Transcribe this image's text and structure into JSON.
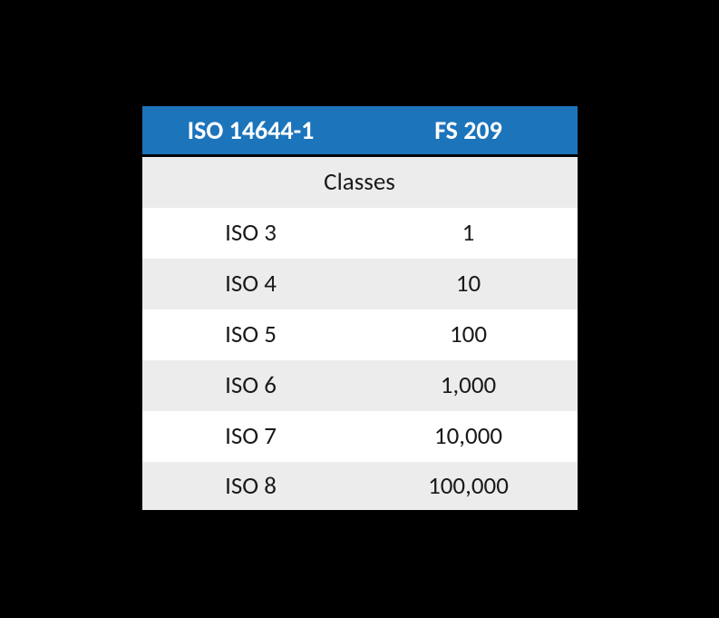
{
  "table": {
    "type": "table",
    "background_color": "#000000",
    "header_bg": "#1c74bb",
    "header_text_color": "#ffffff",
    "header_fontweight": 700,
    "header_fontsize": 28,
    "cell_fontsize": 27,
    "cell_text_color": "#1a1a1a",
    "row_bg_even": "#ffffff",
    "row_bg_odd": "#ececec",
    "border_color": "#000000",
    "border_width": 3,
    "columns": [
      {
        "key": "iso",
        "label": "ISO 14644-1"
      },
      {
        "key": "fs",
        "label": "FS 209"
      }
    ],
    "subheader": "Classes",
    "rows": [
      {
        "iso": "ISO 3",
        "fs": "1"
      },
      {
        "iso": "ISO 4",
        "fs": "10"
      },
      {
        "iso": "ISO 5",
        "fs": "100"
      },
      {
        "iso": "ISO 6",
        "fs": "1,000"
      },
      {
        "iso": "ISO 7",
        "fs": "10,000"
      },
      {
        "iso": "ISO 8",
        "fs": "100,000"
      }
    ]
  }
}
